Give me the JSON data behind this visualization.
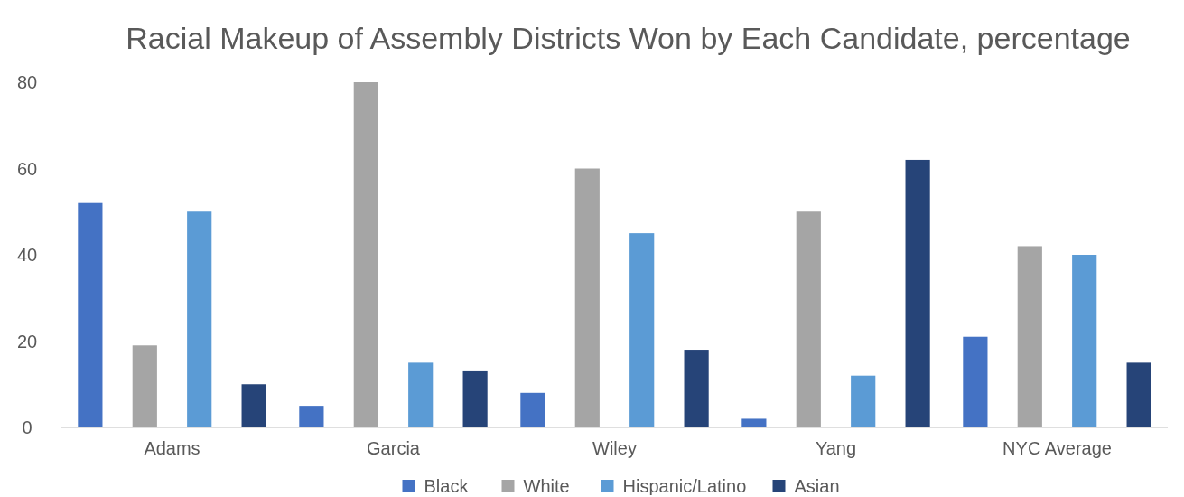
{
  "chart_data": {
    "type": "bar",
    "title": "Racial Makeup of Assembly Districts Won by Each Candidate, percentage",
    "categories": [
      "Adams",
      "Garcia",
      "Wiley",
      "Yang",
      "NYC Average"
    ],
    "series": [
      {
        "name": "Black",
        "color": "#4472c4",
        "values": [
          52,
          5,
          8,
          2,
          21
        ]
      },
      {
        "name": "White",
        "color": "#a5a5a5",
        "values": [
          19,
          80,
          60,
          50,
          42
        ]
      },
      {
        "name": "Hispanic/Latino",
        "color": "#5b9bd5",
        "values": [
          50,
          15,
          45,
          12,
          40
        ]
      },
      {
        "name": "Asian",
        "color": "#264478",
        "values": [
          10,
          13,
          18,
          62,
          15
        ]
      }
    ],
    "ylim": [
      0,
      80
    ],
    "yticks": [
      0,
      20,
      40,
      60,
      80
    ],
    "grid": false,
    "legend": "bottom"
  }
}
